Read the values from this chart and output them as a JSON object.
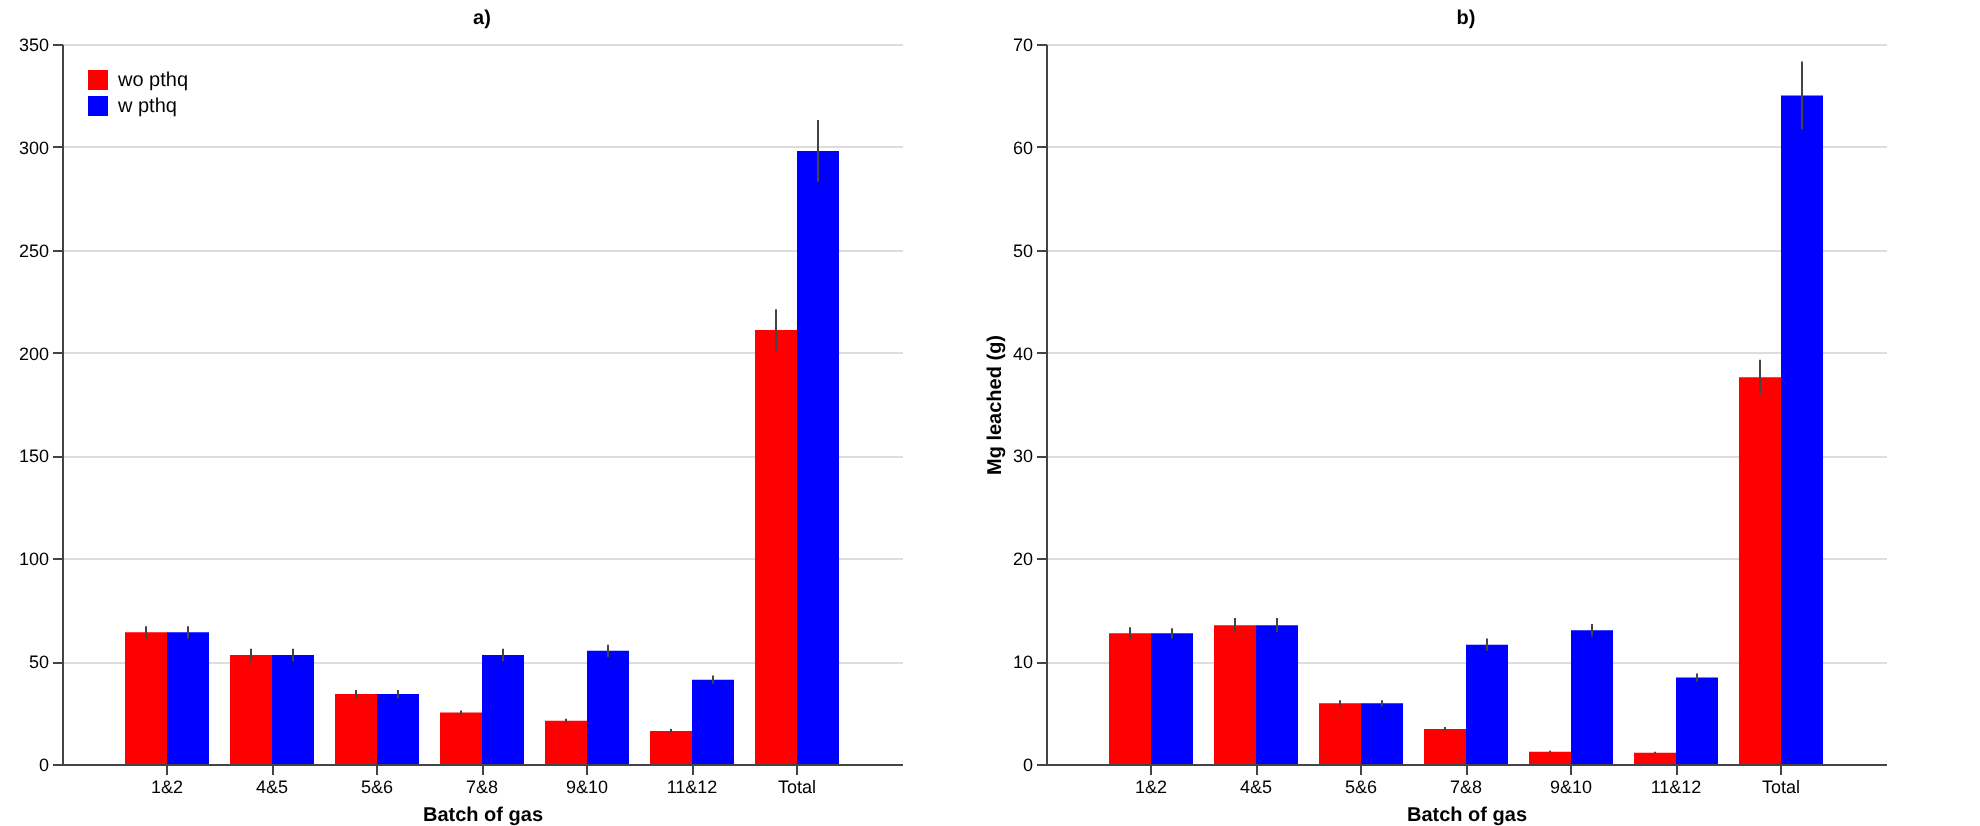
{
  "chart_data": [
    {
      "type": "bar",
      "title": "a)",
      "xlabel": "Batch of gas",
      "categories": [
        "1&2",
        "4&5",
        "5&6",
        "7&8",
        "9&10",
        "11&12",
        "Total"
      ],
      "series": [
        {
          "name": "wo pthq",
          "color": "#ff0000",
          "values": [
            64,
            53,
            34,
            25,
            21,
            16,
            211
          ],
          "errors": [
            3,
            3,
            2,
            1,
            1,
            1,
            10
          ]
        },
        {
          "name": "w pthq",
          "color": "#0000ff",
          "values": [
            64,
            53,
            34,
            53,
            55,
            41,
            298
          ],
          "errors": [
            3,
            3,
            2,
            3,
            3,
            2,
            15
          ]
        }
      ],
      "ylim": [
        0,
        350
      ],
      "yticks": [
        0,
        50,
        100,
        150,
        200,
        250,
        300,
        350
      ],
      "grid": "y",
      "legend": "top left"
    },
    {
      "type": "bar",
      "title": "b)",
      "xlabel": "Batch of gas",
      "ylabel": "Mg leached (g)",
      "categories": [
        "1&2",
        "4&5",
        "5&6",
        "7&8",
        "9&10",
        "11&12",
        "Total"
      ],
      "series": [
        {
          "name": "wo pthq",
          "color": "#ff0000",
          "values": [
            12.7,
            13.5,
            5.9,
            3.4,
            1.2,
            1.1,
            37.6
          ],
          "errors": [
            0.6,
            0.7,
            0.3,
            0.2,
            0.1,
            0.1,
            1.7
          ]
        },
        {
          "name": "w pthq",
          "color": "#0000ff",
          "values": [
            12.7,
            13.5,
            5.9,
            11.6,
            13.0,
            8.4,
            65
          ],
          "errors": [
            0.5,
            0.7,
            0.3,
            0.6,
            0.6,
            0.4,
            3.3
          ]
        }
      ],
      "ylim": [
        0,
        70
      ],
      "yticks": [
        0,
        10,
        20,
        30,
        40,
        50,
        60,
        70
      ],
      "grid": "y",
      "legend": "top left"
    }
  ]
}
